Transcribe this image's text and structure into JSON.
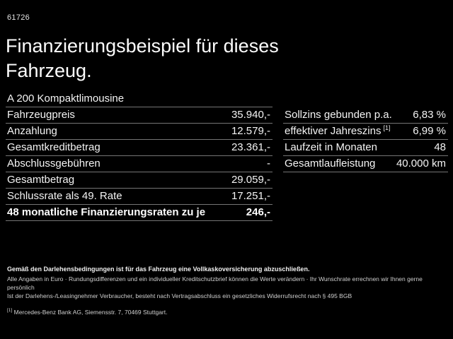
{
  "page_code": "61726",
  "title": "Finanzierungsbeispiel für dieses Fahrzeug.",
  "finance_table": {
    "header": "A 200 Kompaktlimousine",
    "rows": [
      {
        "label": "Fahrzeugpreis",
        "value": "35.940,-"
      },
      {
        "label": "Anzahlung",
        "value": "12.579,-"
      },
      {
        "label": "Gesamtkreditbetrag",
        "value": "23.361,-"
      },
      {
        "label": "Abschlussgebühren",
        "value": "-"
      },
      {
        "label": "Gesamtbetrag",
        "value": "29.059,-"
      },
      {
        "label": "Schlussrate als 49. Rate",
        "value": "17.251,-"
      }
    ],
    "total_row": {
      "label": "48 monatliche Finanzierungsraten zu je",
      "value": "246,-"
    }
  },
  "conditions_table": {
    "rows": [
      {
        "label": "Sollzins gebunden p.a.",
        "sup": "",
        "value": "6,83 %"
      },
      {
        "label": "effektiver Jahreszins",
        "sup": "[1]",
        "value": "6,99 %"
      },
      {
        "label": "Laufzeit in Monaten",
        "sup": "",
        "value": "48"
      },
      {
        "label": "Gesamtlaufleistung",
        "sup": "",
        "value": "40.000 km"
      }
    ]
  },
  "footer": {
    "insurance_note": "Gemäß den Darlehensbedingungen ist für das Fahrzeug eine Vollkaskoversicherung abzuschließen.",
    "info_line": "Alle Angaben in Euro · Rundungsdifferenzen und ein individueller Kreditschutzbrief können die Werte verändern · Ihr Wunschrate errechnen wir Ihnen gerne persönlich",
    "withdrawal_line": "Ist der Darlehens-/Leasingnehmer Verbraucher, besteht nach Vertragsabschluss ein gesetzliches Widerrufsrecht nach § 495 BGB",
    "footnote_marker": "[1]",
    "footnote_text": "Mercedes-Benz Bank AG, Siemensstr. 7, 70469 Stuttgart."
  },
  "colors": {
    "background": "#000000",
    "text": "#ffffff",
    "divider": "#757575"
  }
}
